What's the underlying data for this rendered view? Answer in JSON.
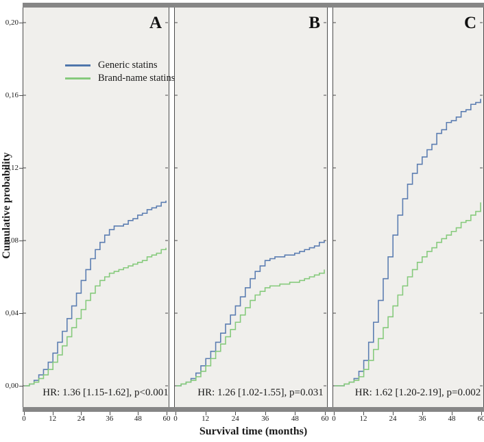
{
  "figure": {
    "y_axis_title": "Cumulative probability",
    "x_axis_title": "Survival time (months)",
    "y_ticks": [
      {
        "v": 0.2,
        "label": "0,20"
      },
      {
        "v": 0.16,
        "label": "0,16"
      },
      {
        "v": 0.12,
        "label": "0,12"
      },
      {
        "v": 0.08,
        "label": "0,08"
      },
      {
        "v": 0.04,
        "label": "0,04"
      },
      {
        "v": 0.0,
        "label": "0,00"
      }
    ],
    "x_ticks": [
      {
        "v": 0,
        "label": "0"
      },
      {
        "v": 12,
        "label": "12"
      },
      {
        "v": 24,
        "label": "24"
      },
      {
        "v": 36,
        "label": "36"
      },
      {
        "v": 48,
        "label": "48"
      },
      {
        "v": 60,
        "label": "60"
      }
    ]
  },
  "legend": {
    "items": [
      {
        "label": "Generic statins",
        "color": "#4f76ab"
      },
      {
        "label": "Brand-name statins",
        "color": "#86ca7c"
      }
    ]
  },
  "chart_data": {
    "type": "line",
    "subtype": "kaplan-meier-step",
    "xlabel": "Survival time (months)",
    "ylabel": "Cumulative probability",
    "xlim": [
      0,
      60
    ],
    "ylim": [
      0,
      0.2
    ],
    "x_tick_values": [
      0,
      12,
      24,
      36,
      48,
      60
    ],
    "y_tick_values": [
      0.0,
      0.04,
      0.08,
      0.12,
      0.16,
      0.2
    ],
    "grid": false,
    "legend_position": "upper-left-panel-A",
    "panels": [
      {
        "label": "A",
        "annotation": "HR: 1.36 [1.15-1.62], p<0.001",
        "series": [
          {
            "name": "Generic statins",
            "color": "#5b7db1",
            "points": [
              [
                0,
                0
              ],
              [
                2,
                0.001
              ],
              [
                4,
                0.003
              ],
              [
                6,
                0.006
              ],
              [
                8,
                0.009
              ],
              [
                10,
                0.013
              ],
              [
                12,
                0.018
              ],
              [
                14,
                0.024
              ],
              [
                16,
                0.03
              ],
              [
                18,
                0.037
              ],
              [
                20,
                0.044
              ],
              [
                22,
                0.051
              ],
              [
                24,
                0.058
              ],
              [
                26,
                0.064
              ],
              [
                28,
                0.07
              ],
              [
                30,
                0.075
              ],
              [
                32,
                0.079
              ],
              [
                34,
                0.083
              ],
              [
                36,
                0.086
              ],
              [
                38,
                0.088
              ],
              [
                40,
                0.088
              ],
              [
                42,
                0.089
              ],
              [
                44,
                0.091
              ],
              [
                46,
                0.092
              ],
              [
                48,
                0.094
              ],
              [
                50,
                0.095
              ],
              [
                52,
                0.097
              ],
              [
                54,
                0.098
              ],
              [
                56,
                0.099
              ],
              [
                58,
                0.101
              ],
              [
                60,
                0.102
              ]
            ]
          },
          {
            "name": "Brand-name statins",
            "color": "#86ca7c",
            "points": [
              [
                0,
                0
              ],
              [
                2,
                0.001
              ],
              [
                4,
                0.002
              ],
              [
                6,
                0.004
              ],
              [
                8,
                0.006
              ],
              [
                10,
                0.009
              ],
              [
                12,
                0.013
              ],
              [
                14,
                0.017
              ],
              [
                16,
                0.022
              ],
              [
                18,
                0.027
              ],
              [
                20,
                0.032
              ],
              [
                22,
                0.037
              ],
              [
                24,
                0.042
              ],
              [
                26,
                0.047
              ],
              [
                28,
                0.051
              ],
              [
                30,
                0.055
              ],
              [
                32,
                0.058
              ],
              [
                34,
                0.06
              ],
              [
                36,
                0.062
              ],
              [
                38,
                0.063
              ],
              [
                40,
                0.064
              ],
              [
                42,
                0.065
              ],
              [
                44,
                0.066
              ],
              [
                46,
                0.067
              ],
              [
                48,
                0.068
              ],
              [
                50,
                0.069
              ],
              [
                52,
                0.071
              ],
              [
                54,
                0.072
              ],
              [
                56,
                0.073
              ],
              [
                58,
                0.075
              ],
              [
                60,
                0.076
              ]
            ]
          }
        ]
      },
      {
        "label": "B",
        "annotation": "HR: 1.26 [1.02-1.55], p=0.031",
        "series": [
          {
            "name": "Generic statins",
            "color": "#5b7db1",
            "points": [
              [
                0,
                0
              ],
              [
                2,
                0.001
              ],
              [
                4,
                0.002
              ],
              [
                6,
                0.004
              ],
              [
                8,
                0.007
              ],
              [
                10,
                0.011
              ],
              [
                12,
                0.015
              ],
              [
                14,
                0.019
              ],
              [
                16,
                0.024
              ],
              [
                18,
                0.029
              ],
              [
                20,
                0.034
              ],
              [
                22,
                0.039
              ],
              [
                24,
                0.044
              ],
              [
                26,
                0.049
              ],
              [
                28,
                0.054
              ],
              [
                30,
                0.059
              ],
              [
                32,
                0.063
              ],
              [
                34,
                0.066
              ],
              [
                36,
                0.069
              ],
              [
                38,
                0.07
              ],
              [
                40,
                0.071
              ],
              [
                42,
                0.071
              ],
              [
                44,
                0.072
              ],
              [
                46,
                0.072
              ],
              [
                48,
                0.073
              ],
              [
                50,
                0.074
              ],
              [
                52,
                0.075
              ],
              [
                54,
                0.076
              ],
              [
                56,
                0.077
              ],
              [
                58,
                0.079
              ],
              [
                60,
                0.08
              ]
            ]
          },
          {
            "name": "Brand-name statins",
            "color": "#86ca7c",
            "points": [
              [
                0,
                0
              ],
              [
                2,
                0.001
              ],
              [
                4,
                0.002
              ],
              [
                6,
                0.003
              ],
              [
                8,
                0.005
              ],
              [
                10,
                0.008
              ],
              [
                12,
                0.011
              ],
              [
                14,
                0.015
              ],
              [
                16,
                0.019
              ],
              [
                18,
                0.023
              ],
              [
                20,
                0.027
              ],
              [
                22,
                0.031
              ],
              [
                24,
                0.035
              ],
              [
                26,
                0.039
              ],
              [
                28,
                0.043
              ],
              [
                30,
                0.047
              ],
              [
                32,
                0.05
              ],
              [
                34,
                0.052
              ],
              [
                36,
                0.054
              ],
              [
                38,
                0.055
              ],
              [
                40,
                0.055
              ],
              [
                42,
                0.056
              ],
              [
                44,
                0.056
              ],
              [
                46,
                0.057
              ],
              [
                48,
                0.057
              ],
              [
                50,
                0.058
              ],
              [
                52,
                0.059
              ],
              [
                54,
                0.06
              ],
              [
                56,
                0.061
              ],
              [
                58,
                0.062
              ],
              [
                60,
                0.064
              ]
            ]
          }
        ]
      },
      {
        "label": "C",
        "annotation": "HR: 1.62 [1.20-2.19], p=0.002",
        "series": [
          {
            "name": "Generic statins",
            "color": "#5b7db1",
            "points": [
              [
                0,
                0
              ],
              [
                2,
                0.0
              ],
              [
                4,
                0.001
              ],
              [
                6,
                0.002
              ],
              [
                8,
                0.004
              ],
              [
                10,
                0.008
              ],
              [
                12,
                0.014
              ],
              [
                14,
                0.024
              ],
              [
                16,
                0.035
              ],
              [
                18,
                0.047
              ],
              [
                20,
                0.059
              ],
              [
                22,
                0.071
              ],
              [
                24,
                0.083
              ],
              [
                26,
                0.094
              ],
              [
                28,
                0.103
              ],
              [
                30,
                0.111
              ],
              [
                32,
                0.117
              ],
              [
                34,
                0.122
              ],
              [
                36,
                0.126
              ],
              [
                38,
                0.13
              ],
              [
                40,
                0.133
              ],
              [
                42,
                0.139
              ],
              [
                44,
                0.141
              ],
              [
                46,
                0.145
              ],
              [
                48,
                0.146
              ],
              [
                50,
                0.148
              ],
              [
                52,
                0.151
              ],
              [
                54,
                0.152
              ],
              [
                56,
                0.155
              ],
              [
                58,
                0.156
              ],
              [
                60,
                0.158
              ]
            ]
          },
          {
            "name": "Brand-name statins",
            "color": "#86ca7c",
            "points": [
              [
                0,
                0
              ],
              [
                2,
                0.0
              ],
              [
                4,
                0.001
              ],
              [
                6,
                0.002
              ],
              [
                8,
                0.003
              ],
              [
                10,
                0.005
              ],
              [
                12,
                0.009
              ],
              [
                14,
                0.014
              ],
              [
                16,
                0.02
              ],
              [
                18,
                0.026
              ],
              [
                20,
                0.032
              ],
              [
                22,
                0.038
              ],
              [
                24,
                0.044
              ],
              [
                26,
                0.05
              ],
              [
                28,
                0.055
              ],
              [
                30,
                0.06
              ],
              [
                32,
                0.064
              ],
              [
                34,
                0.068
              ],
              [
                36,
                0.071
              ],
              [
                38,
                0.074
              ],
              [
                40,
                0.076
              ],
              [
                42,
                0.079
              ],
              [
                44,
                0.081
              ],
              [
                46,
                0.083
              ],
              [
                48,
                0.085
              ],
              [
                50,
                0.087
              ],
              [
                52,
                0.09
              ],
              [
                54,
                0.091
              ],
              [
                56,
                0.094
              ],
              [
                58,
                0.096
              ],
              [
                60,
                0.101
              ]
            ]
          }
        ]
      }
    ]
  }
}
